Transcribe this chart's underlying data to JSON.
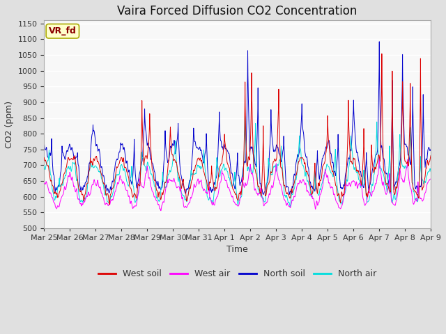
{
  "title": "Vaira Forced Diffusion CO2 Concentration",
  "xlabel": "Time",
  "ylabel": "CO2 (ppm)",
  "ylim": [
    500,
    1160
  ],
  "yticks": [
    500,
    550,
    600,
    650,
    700,
    750,
    800,
    850,
    900,
    950,
    1000,
    1050,
    1100,
    1150
  ],
  "legend_label": "VR_fd",
  "legend_box_facecolor": "#FFFFCC",
  "legend_box_edgecolor": "#AAAA00",
  "series_labels": [
    "West soil",
    "West air",
    "North soil",
    "North air"
  ],
  "series_colors": [
    "#DD0000",
    "#FF00FF",
    "#0000CC",
    "#00DDDD"
  ],
  "fig_facecolor": "#E0E0E0",
  "plot_facecolor": "#F8F8F8",
  "grid_color": "#FFFFFF",
  "title_fontsize": 12,
  "axis_fontsize": 9,
  "tick_fontsize": 8,
  "legend_fontsize": 9,
  "start_day": 84,
  "end_day": 99,
  "xtick_positions": [
    84,
    85,
    86,
    87,
    88,
    89,
    90,
    91,
    92,
    93,
    94,
    95,
    96,
    97,
    98,
    99
  ],
  "xtick_labels": [
    "Mar 25",
    "Mar 26",
    "Mar 27",
    "Mar 28",
    "Mar 29",
    "Mar 30",
    "Mar 31",
    "Apr 1",
    "Apr 2",
    "Apr 3",
    "Apr 4",
    "Apr 5",
    "Apr 6",
    "Apr 7",
    "Apr 8",
    "Apr 9"
  ]
}
